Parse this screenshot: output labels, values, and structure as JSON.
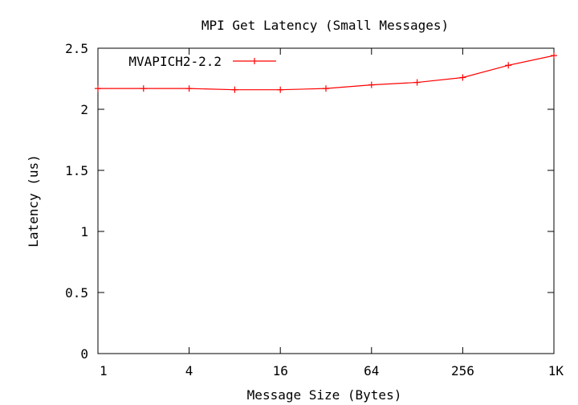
{
  "chart_data": {
    "type": "line",
    "title": "MPI Get Latency (Small Messages)",
    "xlabel": "Message Size (Bytes)",
    "ylabel": "Latency (us)",
    "x_scale": "log2",
    "x": [
      1,
      2,
      4,
      8,
      16,
      32,
      64,
      128,
      256,
      512,
      1024
    ],
    "xlim": [
      1,
      1024
    ],
    "x_ticks": [
      {
        "value": 1,
        "label": "1"
      },
      {
        "value": 4,
        "label": "4"
      },
      {
        "value": 16,
        "label": "16"
      },
      {
        "value": 64,
        "label": "64"
      },
      {
        "value": 256,
        "label": "256"
      },
      {
        "value": 1024,
        "label": "1K"
      }
    ],
    "ylim": [
      0,
      2.5
    ],
    "y_ticks": [
      {
        "value": 0,
        "label": "0"
      },
      {
        "value": 0.5,
        "label": "0.5"
      },
      {
        "value": 1,
        "label": "1"
      },
      {
        "value": 1.5,
        "label": "1.5"
      },
      {
        "value": 2,
        "label": "2"
      },
      {
        "value": 2.5,
        "label": "2.5"
      }
    ],
    "grid": false,
    "legend_position": "top-left",
    "series": [
      {
        "name": "MVAPICH2-2.2",
        "color": "#ff0000",
        "values": [
          2.17,
          2.17,
          2.17,
          2.16,
          2.16,
          2.17,
          2.2,
          2.22,
          2.26,
          2.36,
          2.44
        ]
      }
    ]
  }
}
